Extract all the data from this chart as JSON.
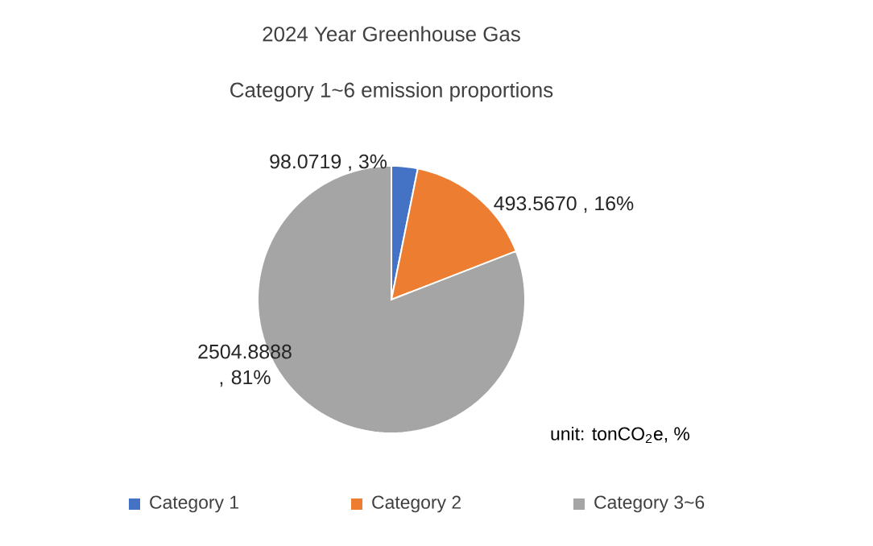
{
  "chart_data": {
    "type": "pie",
    "title": "2024 Year Greenhouse Gas",
    "subtitle": "Category 1~6  emission proportions",
    "categories": [
      "Category 1",
      "Category  2",
      "Category 3~6"
    ],
    "values": [
      98.0719,
      493.567,
      2504.8888
    ],
    "value_labels": [
      "98.0719 , 3%",
      "493.5670 , 16%",
      "2504.8888 , 81%"
    ],
    "colors": [
      "#4472c4",
      "#ed7d31",
      "#a5a5a5"
    ],
    "legend": "bottom",
    "annotations": [
      "unit: tonCO$_{2}$e, %"
    ]
  }
}
